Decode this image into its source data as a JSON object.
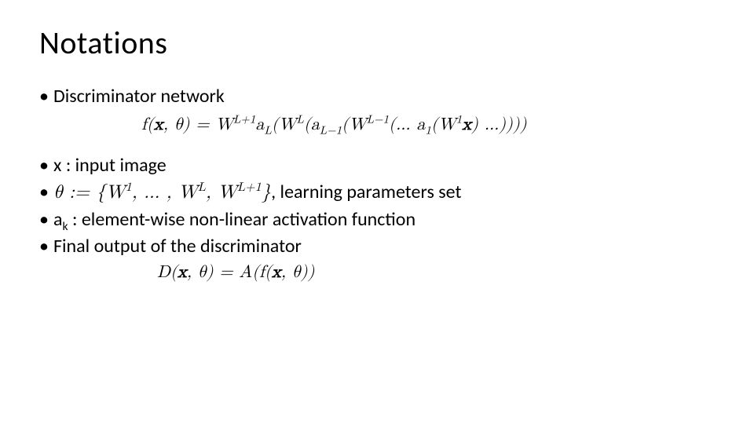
{
  "slide": {
    "title": "Notations",
    "title_fontsize": 40,
    "body_fontsize": 24,
    "text_color": "#000000",
    "background_color": "#ffffff",
    "font_family": "Calibri",
    "formula_font_family": "Cambria Math",
    "bullets": {
      "b1": "Discriminator network",
      "b2": "x : input image",
      "b3_tail": ", learning parameters set",
      "b4_prefix": "a",
      "b4_sub": "k",
      "b4_tail": " : element-wise non-linear activation function",
      "b5": "Final output of the discriminator"
    },
    "formulas": {
      "f1": "f(x, θ) = W^{L+1} a_L(W^L (a_{L-1}(W^{L-1}(… a_1(W^1 x) …))))",
      "theta_set": "θ := {W^1, … , W^L, W^{L+1}}",
      "f2": "D(x, θ) = A(f(x, θ))"
    },
    "formula_fontsize": 22
  }
}
